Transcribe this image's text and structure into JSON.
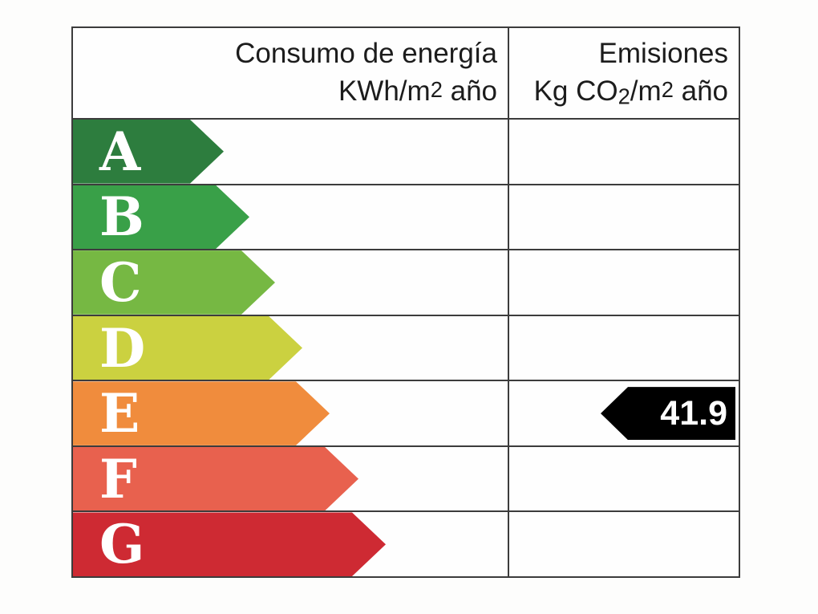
{
  "header": {
    "consumption": {
      "line1": "Consumo de energía",
      "line2_pre": "KWh/m",
      "line2_sup": "2",
      "line2_post": " año"
    },
    "emissions": {
      "line1": "Emisiones",
      "line2_pre": "Kg CO",
      "line2_sub": "2",
      "line2_mid": "/m",
      "line2_sup": "2",
      "line2_post": " año"
    }
  },
  "ratings": [
    {
      "letter": "A",
      "color": "#2d7d3e",
      "arrow_width": 188
    },
    {
      "letter": "B",
      "color": "#39a048",
      "arrow_width": 220
    },
    {
      "letter": "C",
      "color": "#76b843",
      "arrow_width": 252
    },
    {
      "letter": "D",
      "color": "#cbd140",
      "arrow_width": 286
    },
    {
      "letter": "E",
      "color": "#f08c3d",
      "arrow_width": 320
    },
    {
      "letter": "F",
      "color": "#e8614e",
      "arrow_width": 356
    },
    {
      "letter": "G",
      "color": "#ce2a33",
      "arrow_width": 390
    }
  ],
  "emissions_marker": {
    "row_letter": "E",
    "value": "41.9",
    "background": "#000000",
    "text_color": "#ffffff"
  },
  "style": {
    "border_color": "#3c3c3c",
    "letter_color": "#ffffff",
    "header_text_color": "#1c1c1c"
  },
  "chart_data": {
    "type": "table",
    "title": "Etiqueta de eficiencia energética",
    "columns": [
      "Consumo de energía KWh/m2 año",
      "Emisiones Kg CO2/m2 año"
    ],
    "categories": [
      "A",
      "B",
      "C",
      "D",
      "E",
      "F",
      "G"
    ],
    "category_colors": [
      "#2d7d3e",
      "#39a048",
      "#76b843",
      "#cbd140",
      "#f08c3d",
      "#e8614e",
      "#ce2a33"
    ],
    "series": [
      {
        "name": "Consumo de energía KWh/m2 año",
        "rating": null,
        "value": null
      },
      {
        "name": "Emisiones Kg CO2/m2 año",
        "rating": "E",
        "value": 41.9
      }
    ]
  }
}
